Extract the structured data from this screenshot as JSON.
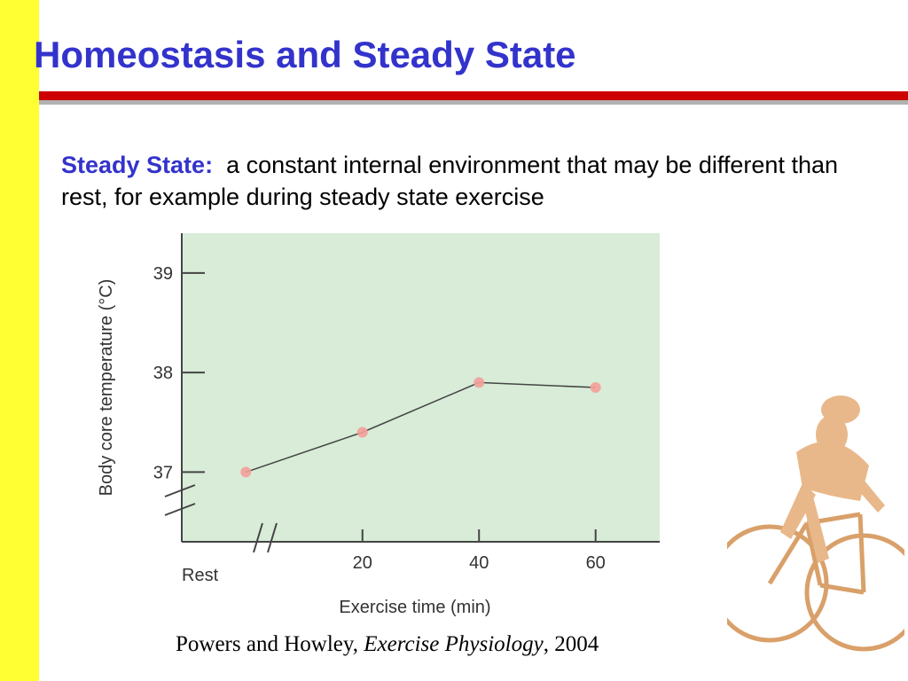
{
  "slide": {
    "title": "Homeostasis and Steady State",
    "definition": {
      "term": "Steady State:",
      "text": "a constant internal environment that may be different than rest, for example during steady state exercise"
    },
    "citation": {
      "authors": "Powers and Howley,",
      "book": "Exercise Physiology",
      "year": ", 2004"
    },
    "colors": {
      "title": "#3333cc",
      "left_bar": "#ffff33",
      "rule": "#cc0000",
      "plot_background": "#d8ecd8",
      "point": "#f4a09a",
      "cyclist": "#e8b88a"
    },
    "decorations": [
      "cyclist-clipart",
      "red-title-rule",
      "yellow-left-bar"
    ]
  },
  "chart_data": {
    "type": "line",
    "title": "",
    "xlabel": "Exercise time (min)",
    "ylabel": "Body core temperature (°C)",
    "x_tick_labels": [
      "Rest",
      "20",
      "40",
      "60"
    ],
    "y_tick_labels": [
      "37",
      "38",
      "39"
    ],
    "xlim": [
      -11,
      71
    ],
    "ylim": [
      36.3,
      39.4
    ],
    "axis_breaks": [
      "x",
      "y"
    ],
    "grid": false,
    "legend": "none",
    "series": [
      {
        "x": [
          "Rest",
          20,
          40,
          60
        ],
        "y": [
          37.0,
          37.4,
          37.9,
          37.85
        ]
      }
    ],
    "point_x_positions": [
      0,
      20,
      40,
      60
    ]
  }
}
